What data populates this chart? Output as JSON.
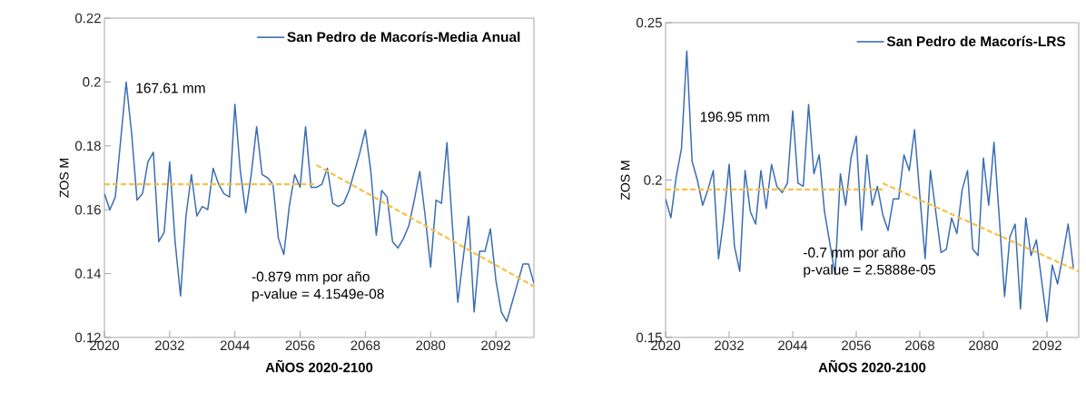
{
  "chart_data": [
    {
      "type": "line",
      "xlabel": "AÑOS 2020-2100",
      "ylabel": "ZOS M",
      "xlim": [
        2020,
        2099
      ],
      "ylim": [
        0.12,
        0.22
      ],
      "xticks": [
        2020,
        2032,
        2044,
        2056,
        2068,
        2080,
        2092
      ],
      "yticks": [
        0.12,
        0.14,
        0.16,
        0.18,
        0.2,
        0.22
      ],
      "legend": "top right",
      "grid": false,
      "annotations": [
        "167.61 mm",
        "-0.879 mm por año",
        "p-value = 4.1549e-08"
      ],
      "series": [
        {
          "name": "San Pedro de Macorís-Media Anual",
          "color": "#3a6db4",
          "x": [
            2020,
            2021,
            2022,
            2023,
            2024,
            2025,
            2026,
            2027,
            2028,
            2029,
            2030,
            2031,
            2032,
            2033,
            2034,
            2035,
            2036,
            2037,
            2038,
            2039,
            2040,
            2041,
            2042,
            2043,
            2044,
            2045,
            2046,
            2047,
            2048,
            2049,
            2050,
            2051,
            2052,
            2053,
            2054,
            2055,
            2056,
            2057,
            2058,
            2059,
            2060,
            2061,
            2062,
            2063,
            2064,
            2065,
            2066,
            2067,
            2068,
            2069,
            2070,
            2071,
            2072,
            2073,
            2074,
            2075,
            2076,
            2077,
            2078,
            2079,
            2080,
            2081,
            2082,
            2083,
            2084,
            2085,
            2086,
            2087,
            2088,
            2089,
            2090,
            2091,
            2092,
            2093,
            2094,
            2095,
            2096,
            2097,
            2098,
            2099
          ],
          "values": [
            0.165,
            0.16,
            0.164,
            0.182,
            0.2,
            0.184,
            0.163,
            0.165,
            0.175,
            0.178,
            0.15,
            0.153,
            0.175,
            0.15,
            0.133,
            0.158,
            0.171,
            0.158,
            0.161,
            0.16,
            0.173,
            0.168,
            0.165,
            0.164,
            0.193,
            0.172,
            0.159,
            0.171,
            0.186,
            0.171,
            0.17,
            0.168,
            0.151,
            0.146,
            0.161,
            0.171,
            0.167,
            0.186,
            0.167,
            0.167,
            0.168,
            0.173,
            0.162,
            0.161,
            0.162,
            0.166,
            0.172,
            0.178,
            0.185,
            0.172,
            0.152,
            0.166,
            0.164,
            0.15,
            0.148,
            0.151,
            0.155,
            0.163,
            0.172,
            0.158,
            0.142,
            0.163,
            0.162,
            0.181,
            0.155,
            0.131,
            0.145,
            0.158,
            0.128,
            0.147,
            0.147,
            0.154,
            0.138,
            0.128,
            0.125,
            0.131,
            0.137,
            0.143,
            0.143,
            0.137
          ]
        },
        {
          "type": "line",
          "line_style": "dashed",
          "color": "#f6c143",
          "x": [
            2020,
            2059
          ],
          "values": [
            0.168,
            0.168
          ]
        },
        {
          "type": "line",
          "line_style": "dashed",
          "color": "#f6c143",
          "x": [
            2059,
            2099
          ],
          "values": [
            0.174,
            0.136
          ]
        }
      ]
    },
    {
      "type": "line",
      "xlabel": "AÑOS 2020-2100",
      "ylabel": "ZOS M",
      "xlim": [
        2020,
        2098
      ],
      "ylim": [
        0.15,
        0.25
      ],
      "xticks": [
        2020,
        2032,
        2044,
        2056,
        2068,
        2080,
        2092
      ],
      "yticks": [
        0.15,
        0.2,
        0.25
      ],
      "legend": "top right",
      "grid": false,
      "annotations": [
        "196.95 mm",
        "-0.7 mm por año",
        "p-value = 2.5888e-05"
      ],
      "series": [
        {
          "name": "San Pedro de Macorís-LRS",
          "color": "#3a6db4",
          "x": [
            2020,
            2021,
            2022,
            2023,
            2024,
            2025,
            2026,
            2027,
            2028,
            2029,
            2030,
            2031,
            2032,
            2033,
            2034,
            2035,
            2036,
            2037,
            2038,
            2039,
            2040,
            2041,
            2042,
            2043,
            2044,
            2045,
            2046,
            2047,
            2048,
            2049,
            2050,
            2051,
            2052,
            2053,
            2054,
            2055,
            2056,
            2057,
            2058,
            2059,
            2060,
            2061,
            2062,
            2063,
            2064,
            2065,
            2066,
            2067,
            2068,
            2069,
            2070,
            2071,
            2072,
            2073,
            2074,
            2075,
            2076,
            2077,
            2078,
            2079,
            2080,
            2081,
            2082,
            2083,
            2084,
            2085,
            2086,
            2087,
            2088,
            2089,
            2090,
            2091,
            2092,
            2093,
            2094,
            2095,
            2096,
            2097
          ],
          "values": [
            0.194,
            0.188,
            0.201,
            0.21,
            0.241,
            0.206,
            0.2,
            0.192,
            0.197,
            0.203,
            0.175,
            0.188,
            0.205,
            0.179,
            0.171,
            0.203,
            0.19,
            0.186,
            0.203,
            0.191,
            0.205,
            0.198,
            0.196,
            0.199,
            0.222,
            0.199,
            0.198,
            0.224,
            0.202,
            0.208,
            0.19,
            0.18,
            0.17,
            0.202,
            0.192,
            0.207,
            0.214,
            0.184,
            0.208,
            0.192,
            0.198,
            0.189,
            0.184,
            0.194,
            0.194,
            0.208,
            0.203,
            0.216,
            0.195,
            0.175,
            0.203,
            0.19,
            0.177,
            0.178,
            0.188,
            0.183,
            0.197,
            0.203,
            0.178,
            0.176,
            0.207,
            0.192,
            0.212,
            0.188,
            0.163,
            0.182,
            0.186,
            0.159,
            0.188,
            0.176,
            0.181,
            0.168,
            0.155,
            0.173,
            0.167,
            0.176,
            0.186,
            0.172
          ]
        },
        {
          "type": "line",
          "line_style": "dashed",
          "color": "#f6c143",
          "x": [
            2020,
            2061
          ],
          "values": [
            0.197,
            0.197
          ]
        },
        {
          "type": "line",
          "line_style": "dashed",
          "color": "#f6c143",
          "x": [
            2061,
            2098
          ],
          "values": [
            0.199,
            0.171
          ]
        }
      ]
    }
  ]
}
